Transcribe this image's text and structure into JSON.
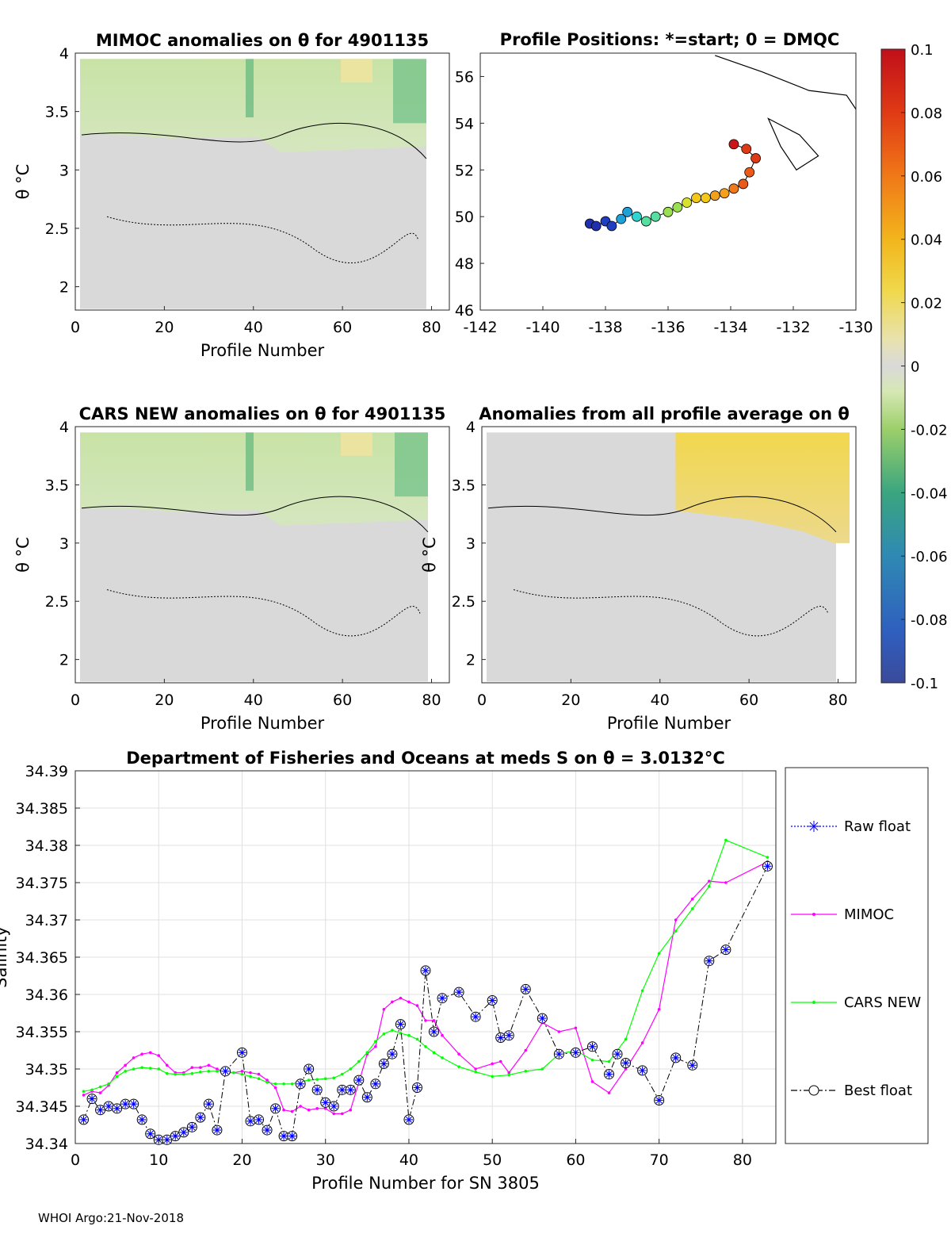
{
  "footer": "WHOI Argo:21-Nov-2018",
  "colors": {
    "raw_float": "#0000ff",
    "mimoc": "#ff00ff",
    "cars": "#00ff00",
    "best": "#000000"
  },
  "chart_data": [
    {
      "type": "heatmap",
      "id": "mimoc",
      "title": "MIMOC anomalies on θ  for 4901135",
      "xlabel": "Profile Number",
      "ylabel": "θ °C",
      "xlim": [
        0,
        84
      ],
      "ylim": [
        1.8,
        4.0
      ],
      "xticks": [
        "0",
        "20",
        "40",
        "60",
        "80"
      ],
      "yticks": [
        "2",
        "2.5",
        "3",
        "3.5",
        "4"
      ]
    },
    {
      "type": "scatter",
      "id": "positions",
      "title": "Profile Positions: *=start; 0 = DMQC",
      "xlim": [
        -142,
        -130
      ],
      "ylim": [
        46,
        57
      ],
      "xticks": [
        "-142",
        "-140",
        "-138",
        "-136",
        "-134",
        "-132",
        "-130"
      ],
      "yticks": [
        "46",
        "48",
        "50",
        "52",
        "54",
        "56"
      ],
      "track_lon": [
        -138.5,
        -138.3,
        -138.0,
        -137.8,
        -137.5,
        -137.3,
        -137.0,
        -136.7,
        -136.4,
        -136.0,
        -135.7,
        -135.4,
        -135.1,
        -134.8,
        -134.5,
        -134.2,
        -133.9,
        -133.6,
        -133.4,
        -133.2,
        -133.5,
        -133.9
      ],
      "track_lat": [
        49.7,
        49.6,
        49.8,
        49.6,
        49.9,
        50.2,
        50.0,
        49.8,
        50.0,
        50.2,
        50.4,
        50.6,
        50.8,
        50.8,
        50.9,
        51.0,
        51.2,
        51.4,
        51.9,
        52.5,
        52.9,
        53.1
      ]
    },
    {
      "type": "heatmap",
      "id": "cars",
      "title": "CARS NEW anomalies on θ for 4901135",
      "xlabel": "Profile Number",
      "ylabel": "θ °C",
      "xlim": [
        0,
        84
      ],
      "ylim": [
        1.8,
        4.0
      ],
      "xticks": [
        "0",
        "20",
        "40",
        "60",
        "80"
      ],
      "yticks": [
        "2",
        "2.5",
        "3",
        "3.5",
        "4"
      ]
    },
    {
      "type": "heatmap",
      "id": "average",
      "title": "Anomalies from all profile average on θ",
      "xlabel": "Profile Number",
      "ylabel": "θ °C",
      "xlim": [
        0,
        84
      ],
      "ylim": [
        1.8,
        4.0
      ],
      "xticks": [
        "0",
        "20",
        "40",
        "60",
        "80"
      ],
      "yticks": [
        "2",
        "2.5",
        "3",
        "3.5",
        "4"
      ]
    },
    {
      "type": "colorbar",
      "id": "colorbar",
      "range": [
        -0.1,
        0.1
      ],
      "ticks": [
        "0.1",
        "0.08",
        "0.06",
        "0.04",
        "0.02",
        "0",
        "-0.02",
        "-0.04",
        "-0.06",
        "-0.08",
        "-0.1"
      ]
    },
    {
      "type": "line",
      "id": "salinity",
      "title": "Department of Fisheries and Oceans at meds S on θ = 3.0132°C",
      "xlabel": "Profile Number for SN 3805",
      "ylabel": "Salinity",
      "xlim": [
        0,
        84
      ],
      "ylim": [
        34.34,
        34.39
      ],
      "xticks": [
        "0",
        "10",
        "20",
        "30",
        "40",
        "50",
        "60",
        "70",
        "80"
      ],
      "yticks": [
        "34.34",
        "34.345",
        "34.35",
        "34.355",
        "34.36",
        "34.365",
        "34.37",
        "34.375",
        "34.38",
        "34.385",
        "34.39"
      ],
      "legend": [
        "Raw float",
        "MIMOC",
        "CARS NEW",
        "Best float"
      ],
      "series": [
        {
          "name": "MIMOC",
          "x": [
            1,
            2,
            3,
            4,
            5,
            6,
            7,
            8,
            9,
            10,
            11,
            12,
            13,
            14,
            15,
            16,
            17,
            18,
            19,
            20,
            21,
            22,
            23,
            24,
            25,
            26,
            27,
            28,
            29,
            30,
            31,
            32,
            33,
            34,
            35,
            36,
            37,
            38,
            39,
            40,
            41,
            42,
            43,
            44,
            46,
            48,
            50,
            51,
            52,
            54,
            56,
            58,
            60,
            62,
            64,
            66,
            68,
            70,
            72,
            74,
            76,
            78,
            83
          ],
          "y": [
            34.3465,
            34.347,
            34.3468,
            34.3478,
            34.3495,
            34.3505,
            34.3515,
            34.352,
            34.3522,
            34.3518,
            34.3505,
            34.3495,
            34.3495,
            34.3502,
            34.3502,
            34.3505,
            34.35,
            34.3495,
            34.3495,
            34.3497,
            34.3495,
            34.3493,
            34.3485,
            34.3475,
            34.3445,
            34.3443,
            34.345,
            34.3445,
            34.3447,
            34.3447,
            34.344,
            34.344,
            34.3445,
            34.3482,
            34.352,
            34.353,
            34.358,
            34.359,
            34.3595,
            34.359,
            34.3585,
            34.3565,
            34.3565,
            34.3545,
            34.352,
            34.35,
            34.3507,
            34.351,
            34.3495,
            34.3525,
            34.3562,
            34.355,
            34.3555,
            34.3483,
            34.3468,
            34.35,
            34.3535,
            34.358,
            34.37,
            34.3728,
            34.3752,
            34.375,
            34.3778
          ]
        },
        {
          "name": "CARS NEW",
          "x": [
            1,
            2,
            3,
            4,
            5,
            6,
            7,
            8,
            9,
            10,
            11,
            12,
            13,
            14,
            15,
            16,
            17,
            18,
            19,
            20,
            21,
            22,
            23,
            24,
            25,
            26,
            27,
            28,
            29,
            30,
            31,
            32,
            33,
            34,
            35,
            36,
            37,
            38,
            39,
            40,
            41,
            42,
            43,
            44,
            46,
            48,
            50,
            52,
            54,
            56,
            58,
            60,
            62,
            64,
            66,
            68,
            70,
            72,
            74,
            76,
            78,
            83
          ],
          "y": [
            34.347,
            34.3472,
            34.3476,
            34.348,
            34.349,
            34.3497,
            34.35,
            34.3502,
            34.3501,
            34.35,
            34.3494,
            34.3493,
            34.3493,
            34.3494,
            34.3496,
            34.3497,
            34.3497,
            34.3497,
            34.3495,
            34.3493,
            34.349,
            34.3487,
            34.3482,
            34.348,
            34.348,
            34.348,
            34.3483,
            34.3485,
            34.3486,
            34.3487,
            34.3488,
            34.3493,
            34.35,
            34.351,
            34.3522,
            34.3537,
            34.3547,
            34.3552,
            34.3548,
            34.3545,
            34.354,
            34.353,
            34.3522,
            34.3515,
            34.3503,
            34.3496,
            34.349,
            34.3492,
            34.3497,
            34.35,
            34.352,
            34.3525,
            34.3512,
            34.351,
            34.354,
            34.3605,
            34.3655,
            34.3685,
            34.3715,
            34.3745,
            34.3807,
            34.3784
          ]
        },
        {
          "name": "Best float",
          "x": [
            1,
            2,
            3,
            4,
            5,
            6,
            7,
            8,
            9,
            10,
            11,
            12,
            13,
            14,
            15,
            16,
            17,
            18,
            20,
            21,
            22,
            23,
            24,
            25,
            26,
            27,
            28,
            29,
            30,
            31,
            32,
            33,
            34,
            35,
            36,
            37,
            38,
            39,
            40,
            41,
            42,
            43,
            44,
            46,
            48,
            50,
            51,
            52,
            54,
            56,
            58,
            60,
            62,
            64,
            65,
            66,
            68,
            70,
            72,
            74,
            76,
            78,
            83
          ],
          "y": [
            34.3432,
            34.346,
            34.3445,
            34.345,
            34.3447,
            34.3453,
            34.3453,
            34.3432,
            34.3413,
            34.3405,
            34.3405,
            34.341,
            34.3415,
            34.3422,
            34.3435,
            34.3453,
            34.3418,
            34.3497,
            34.3522,
            34.343,
            34.3432,
            34.3418,
            34.3447,
            34.341,
            34.341,
            34.348,
            34.35,
            34.3472,
            34.3455,
            34.345,
            34.3472,
            34.3472,
            34.3485,
            34.3462,
            34.348,
            34.3507,
            34.352,
            34.356,
            34.3432,
            34.3475,
            34.3632,
            34.355,
            34.3595,
            34.3603,
            34.357,
            34.3592,
            34.3542,
            34.3545,
            34.3607,
            34.3568,
            34.352,
            34.3522,
            34.353,
            34.3493,
            34.352,
            34.3508,
            34.3498,
            34.3458,
            34.3515,
            34.3505,
            34.3645,
            34.366,
            34.3772
          ]
        }
      ]
    }
  ]
}
